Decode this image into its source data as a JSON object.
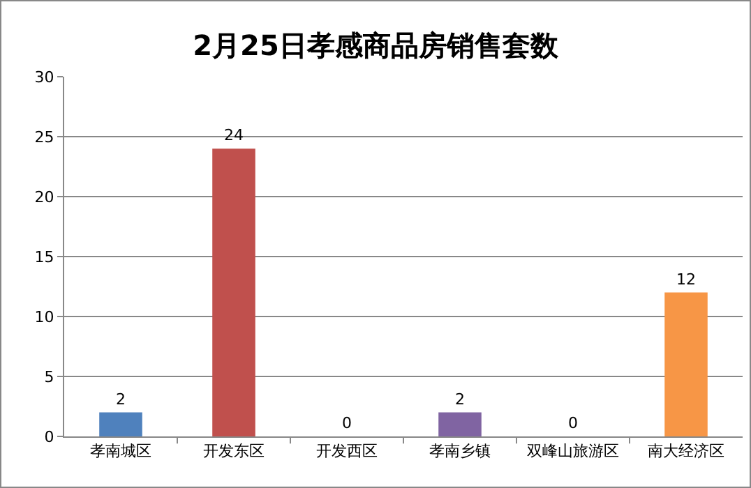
{
  "chart_data": {
    "type": "bar",
    "title": "2月25日孝感商品房销售套数",
    "categories": [
      "孝南城区",
      "开发东区",
      "开发西区",
      "孝南乡镇",
      "双峰山旅游区",
      "南大经济区"
    ],
    "values": [
      2,
      24,
      0,
      2,
      0,
      12
    ],
    "colors": [
      "#4f81bd",
      "#c0504d",
      "#9bbb59",
      "#8064a2",
      "#4bacc6",
      "#f79646"
    ],
    "ylim": [
      0,
      30
    ],
    "yticks": [
      0,
      5,
      10,
      15,
      20,
      25,
      30
    ],
    "grid": "y",
    "legend": false,
    "data_labels": true
  }
}
